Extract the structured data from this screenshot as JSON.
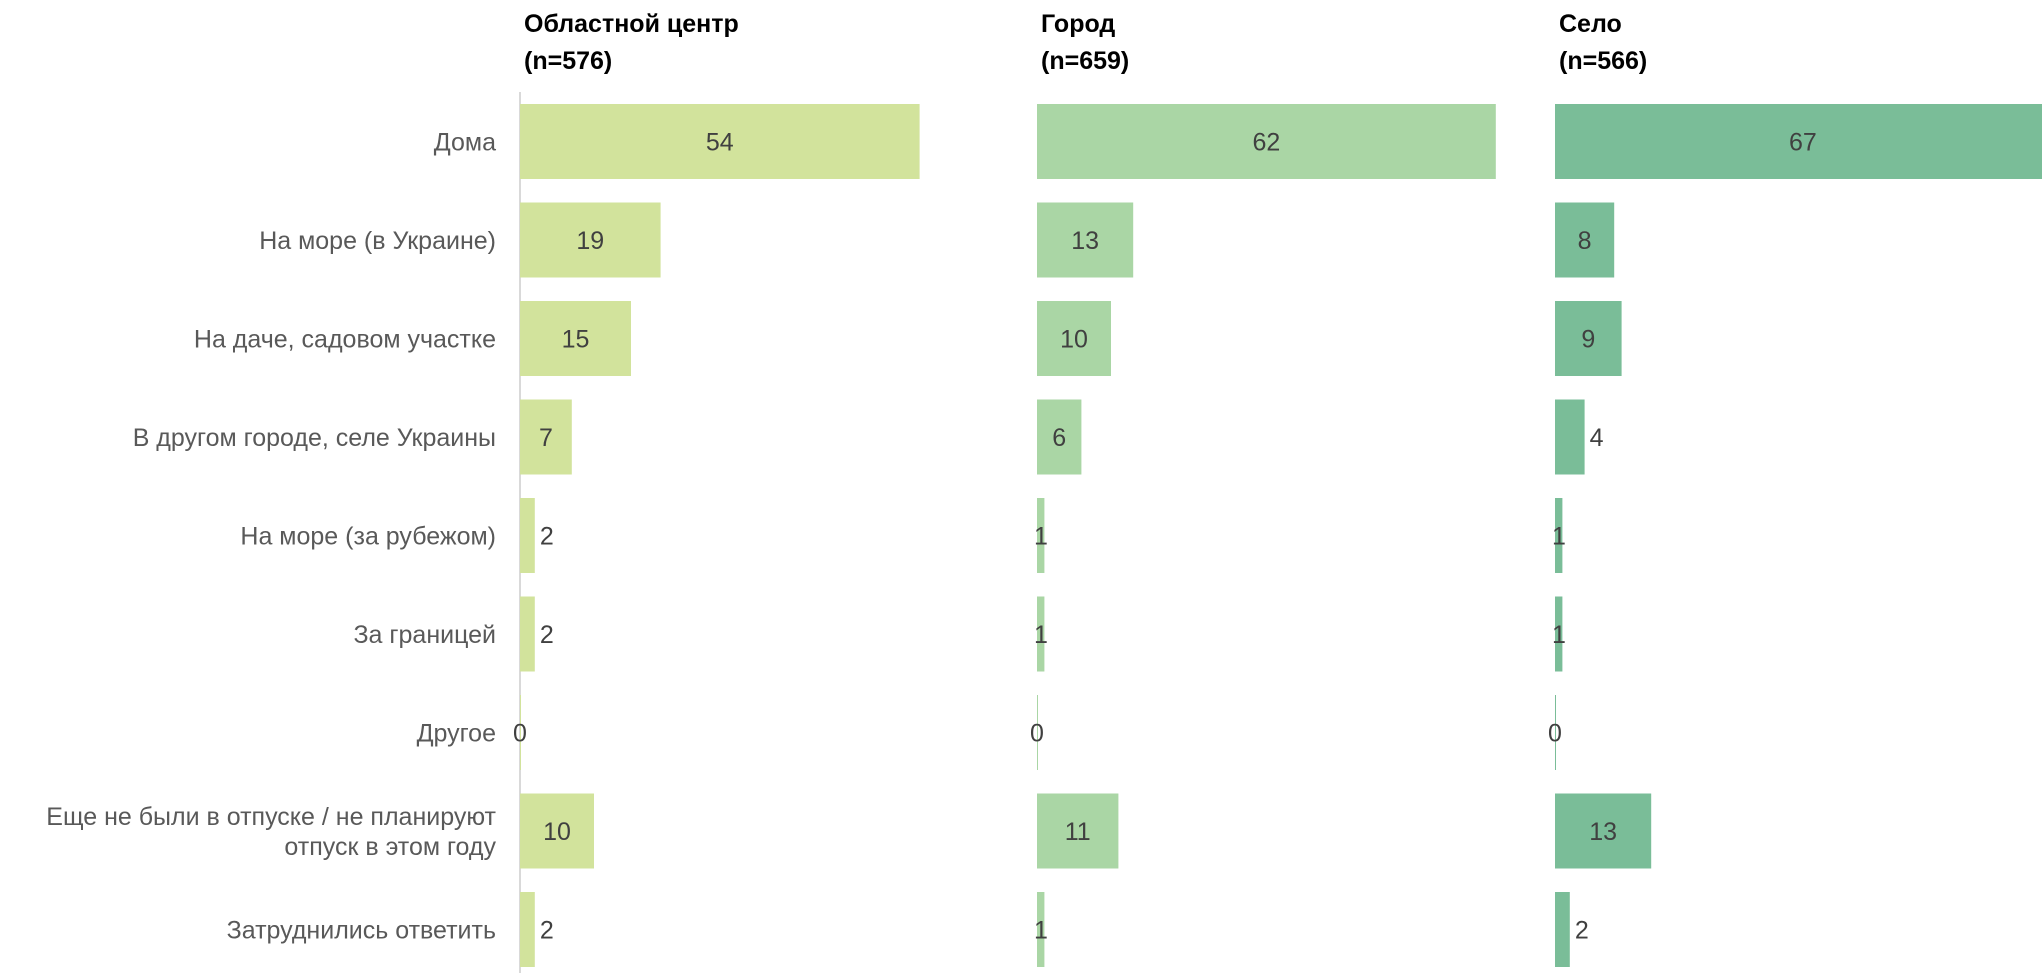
{
  "chart_data": {
    "type": "bar",
    "orientation": "horizontal",
    "categories": [
      [
        "Дома"
      ],
      [
        "На море (в Украине)"
      ],
      [
        "На даче, садовом участке"
      ],
      [
        "В другом городе, селе Украины"
      ],
      [
        "На  море (за рубежом)"
      ],
      [
        "За границей"
      ],
      [
        "Другое"
      ],
      [
        "Еще не были в отпуске / не планируют",
        "отпуск в этом году"
      ],
      [
        "Затруднились ответить"
      ]
    ],
    "series": [
      {
        "title": [
          "Областной центр",
          "(n=576)"
        ],
        "color": "#d2e39c",
        "values": [
          54,
          19,
          15,
          7,
          2,
          2,
          0,
          10,
          2
        ]
      },
      {
        "title": [
          "Город",
          "(n=659)"
        ],
        "color": "#aad6a5",
        "values": [
          62,
          13,
          10,
          6,
          1,
          1,
          0,
          11,
          1
        ]
      },
      {
        "title": [
          "Село",
          "(n=566)"
        ],
        "color": "#7abd98",
        "values": [
          67,
          8,
          9,
          4,
          1,
          1,
          0,
          13,
          2
        ]
      }
    ],
    "grid": false,
    "legend": "none"
  }
}
